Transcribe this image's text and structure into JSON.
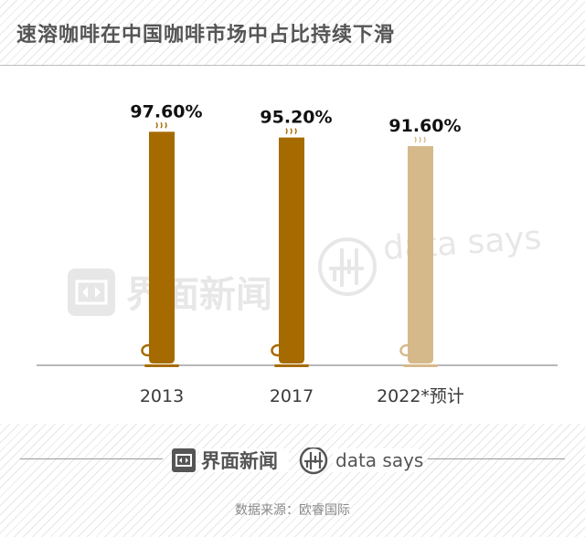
{
  "header": {
    "title": "速溶咖啡在中国咖啡市场中占比持续下滑"
  },
  "chart_data": {
    "type": "bar",
    "title": "速溶咖啡在中国咖啡市场中占比持续下滑",
    "categories": [
      "2013",
      "2017",
      "2022*预计"
    ],
    "values": [
      97.6,
      95.2,
      91.6
    ],
    "value_labels": [
      "97.60%",
      "95.20%",
      "91.60%"
    ],
    "xlabel": "",
    "ylabel": "",
    "ylim": [
      0,
      100
    ],
    "grid": false,
    "bar_colors": [
      "#a66b00",
      "#a66b00",
      "#d6b98a"
    ],
    "axis_color": "#8c8c8c"
  },
  "watermark": {
    "brand": "界面新闻",
    "sub": "data says"
  },
  "footer": {
    "brand": "界面新闻",
    "sub": "data says",
    "source": "数据来源：欧睿国际",
    "brand_color": "#555555"
  },
  "icons": [
    "jiemian-logo-icon",
    "data-says-logo-icon",
    "steam-icon",
    "cup-handle-icon",
    "saucer-icon"
  ]
}
